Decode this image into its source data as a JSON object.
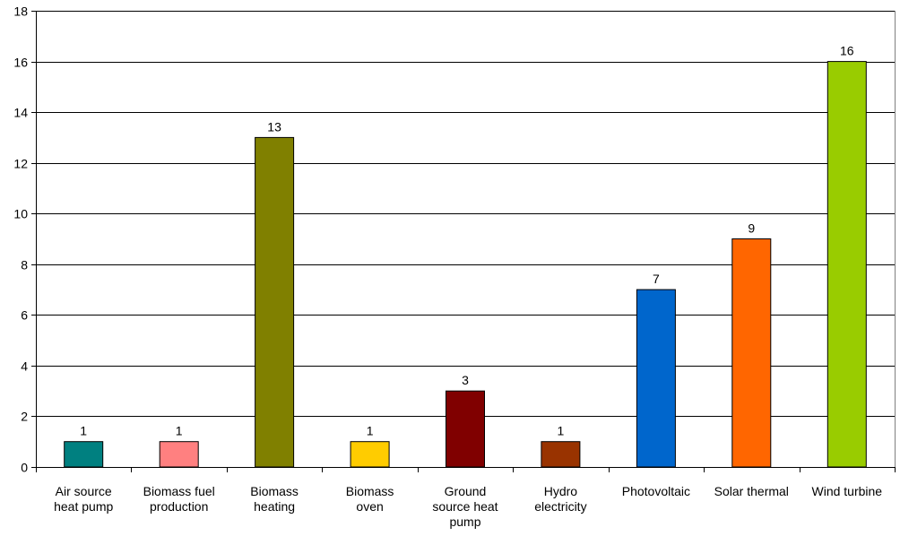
{
  "chart_data": {
    "type": "bar",
    "categories": [
      [
        "Air source",
        "heat pump"
      ],
      [
        "Biomass fuel",
        "production"
      ],
      [
        "Biomass",
        "heating"
      ],
      [
        "Biomass",
        "oven"
      ],
      [
        "Ground",
        "source heat",
        "pump"
      ],
      [
        "Hydro",
        "electricity"
      ],
      [
        "Photovoltaic"
      ],
      [
        "Solar thermal"
      ],
      [
        "Wind turbine"
      ]
    ],
    "values": [
      1,
      1,
      13,
      1,
      3,
      1,
      7,
      9,
      16
    ],
    "value_labels": [
      "1",
      "1",
      "13",
      "1",
      "3",
      "1",
      "7",
      "9",
      "16"
    ],
    "colors": [
      "#008080",
      "#FF8080",
      "#808000",
      "#FFCC00",
      "#800000",
      "#993300",
      "#0066CC",
      "#FF6600",
      "#99CC00"
    ],
    "ylim": [
      0,
      18
    ],
    "yticks": [
      0,
      2,
      4,
      6,
      8,
      10,
      12,
      14,
      16,
      18
    ],
    "ytick_labels": [
      "0",
      "2",
      "4",
      "6",
      "8",
      "10",
      "12",
      "14",
      "16",
      "18"
    ],
    "grid": true,
    "legend": "none",
    "title": "",
    "xlabel": "",
    "ylabel": ""
  }
}
